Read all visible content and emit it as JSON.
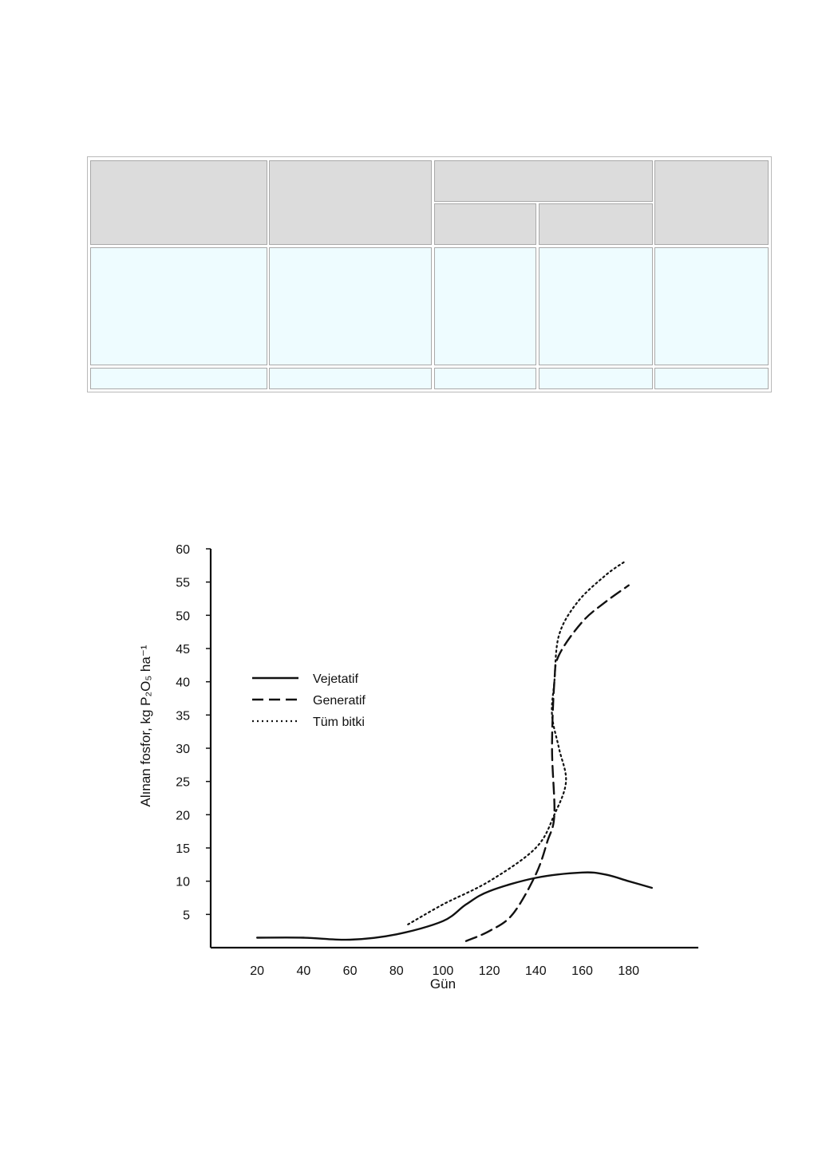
{
  "table": {
    "header_top": [
      "",
      "",
      "",
      ""
    ],
    "header_sub": [
      "",
      ""
    ],
    "rows": [
      [
        "",
        "",
        "",
        "",
        ""
      ],
      [
        "",
        "",
        "",
        "",
        ""
      ]
    ]
  },
  "chart_data": {
    "type": "line",
    "title": "",
    "xlabel": "Gün",
    "ylabel": "Alınan fosfor, kg P₂O₅ ha⁻¹",
    "xlim": [
      0,
      210
    ],
    "ylim": [
      0,
      60
    ],
    "x_ticks": [
      20,
      40,
      60,
      80,
      100,
      120,
      140,
      160,
      180
    ],
    "y_ticks": [
      5,
      10,
      15,
      20,
      25,
      30,
      35,
      40,
      45,
      50,
      55,
      60
    ],
    "grid": false,
    "legend_position": "center-left",
    "series": [
      {
        "name": "Vejetatif",
        "style": "solid",
        "points": [
          [
            20,
            1.5
          ],
          [
            40,
            1.5
          ],
          [
            60,
            1.2
          ],
          [
            80,
            2
          ],
          [
            100,
            4
          ],
          [
            110,
            6.5
          ],
          [
            120,
            8.5
          ],
          [
            140,
            10.5
          ],
          [
            160,
            11.3
          ],
          [
            170,
            11
          ],
          [
            180,
            10
          ],
          [
            190,
            9
          ]
        ]
      },
      {
        "name": "Generatif",
        "style": "dashed",
        "points": [
          [
            110,
            1
          ],
          [
            120,
            2.5
          ],
          [
            130,
            5
          ],
          [
            140,
            11
          ],
          [
            145,
            16
          ],
          [
            148,
            20
          ],
          [
            147,
            30
          ],
          [
            148,
            40
          ],
          [
            150,
            44
          ],
          [
            160,
            49
          ],
          [
            170,
            52
          ],
          [
            180,
            54.5
          ]
        ]
      },
      {
        "name": "Tüm bitki",
        "style": "dotted",
        "points": [
          [
            85,
            3.5
          ],
          [
            100,
            6.5
          ],
          [
            120,
            10
          ],
          [
            140,
            15
          ],
          [
            148,
            20
          ],
          [
            153,
            25
          ],
          [
            150,
            30
          ],
          [
            147,
            35
          ],
          [
            148,
            40
          ],
          [
            150,
            47
          ],
          [
            158,
            52
          ],
          [
            170,
            56
          ],
          [
            178,
            58
          ]
        ]
      }
    ]
  },
  "colors": {
    "ink": "#111111",
    "table_header": "#dcdcdc",
    "table_body": "#eefcff",
    "table_border": "#a9a9a9"
  }
}
